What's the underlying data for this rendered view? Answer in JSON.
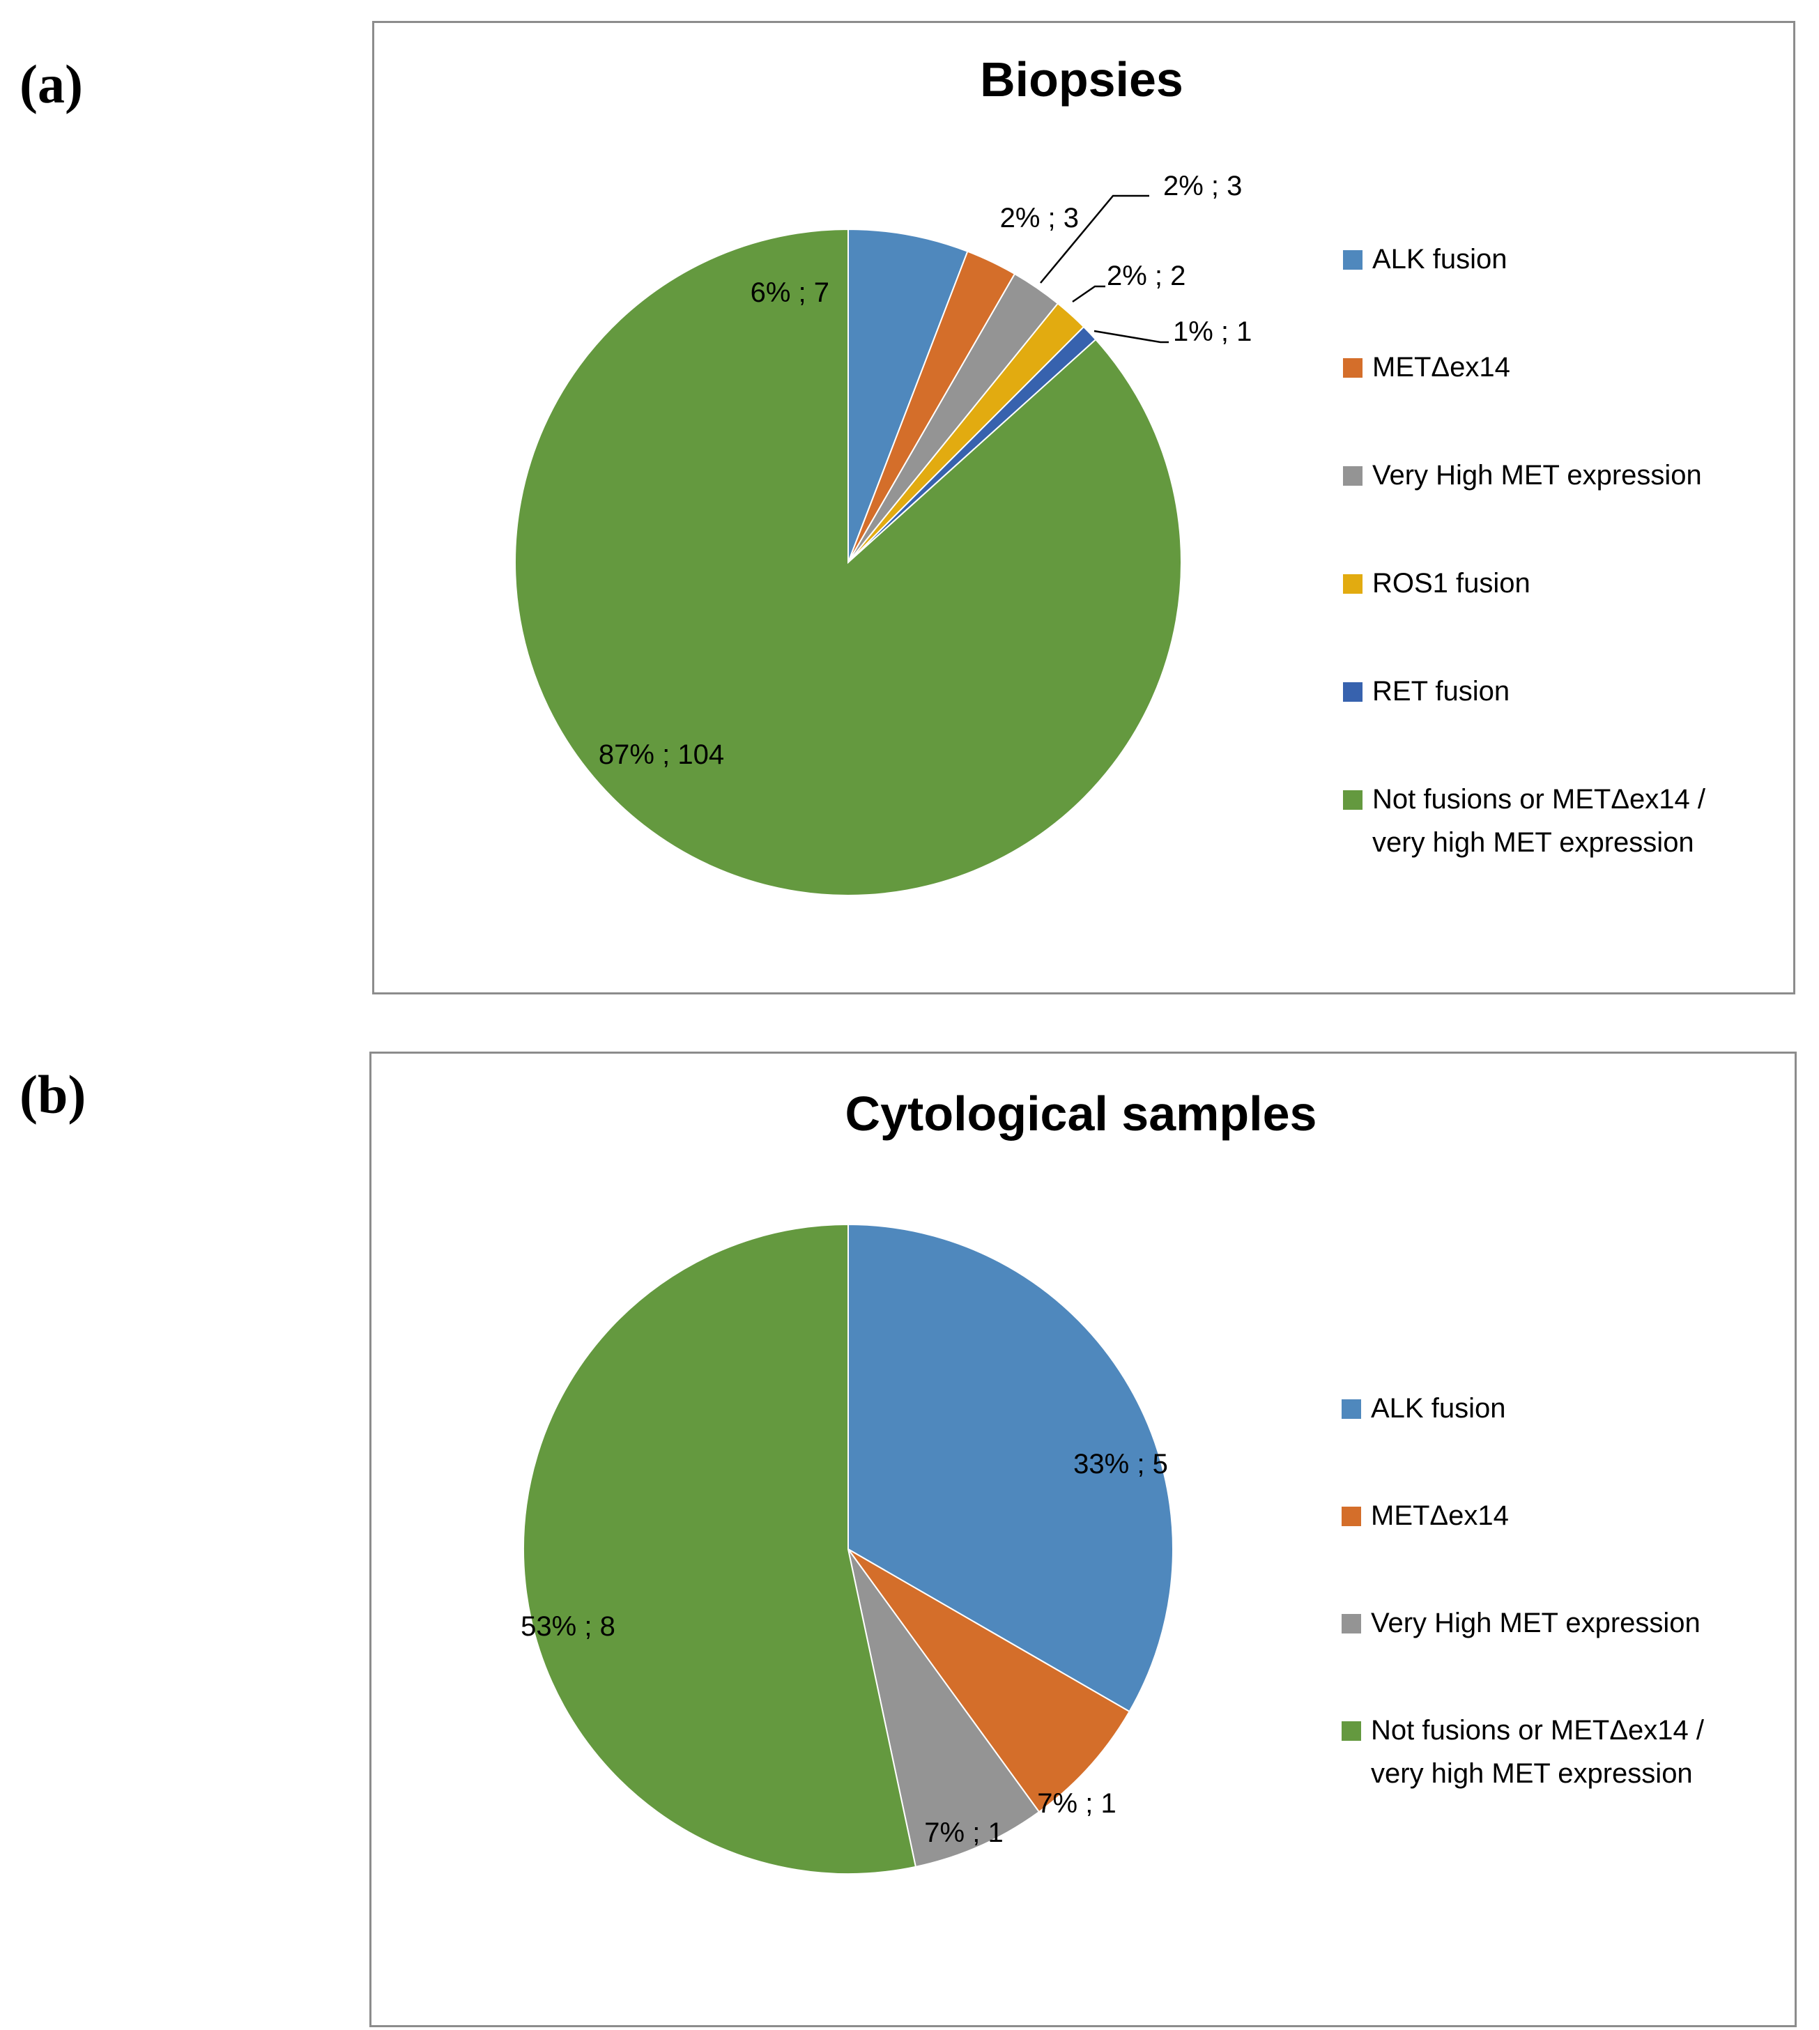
{
  "panel_labels": {
    "a": "(a)",
    "b": "(b)"
  },
  "colors": {
    "ALK fusion": "#4f88bd",
    "METΔex14": "#d46e2a",
    "Very High MET expression": "#949494",
    "ROS1 fusion": "#e2ab10",
    "RET fusion": "#3762ae",
    "Not fusions or METΔex14 / very high MET expression": "#64993f"
  },
  "chart_data": [
    {
      "type": "pie",
      "title": "Biopsies",
      "categories": [
        "ALK fusion",
        "METΔex14",
        "Very High MET expression",
        "ROS1 fusion",
        "RET fusion",
        "Not fusions or METΔex14 / very high MET expression"
      ],
      "values": [
        7,
        3,
        3,
        2,
        1,
        104
      ],
      "data_labels": [
        "6% ; 7",
        "2% ; 3",
        "2% ; 3",
        "2% ; 2",
        "1% ; 1",
        "87% ; 104"
      ],
      "legend": {
        "position": "right",
        "items": [
          {
            "lines": [
              "ALK fusion"
            ]
          },
          {
            "lines": [
              "METΔex14"
            ]
          },
          {
            "lines": [
              "Very High  MET expression"
            ]
          },
          {
            "lines": [
              "ROS1 fusion"
            ]
          },
          {
            "lines": [
              "RET fusion"
            ]
          },
          {
            "lines": [
              "Not fusions  or METΔex14   /",
              "very high MET expression"
            ]
          }
        ]
      }
    },
    {
      "type": "pie",
      "title": "Cytological samples",
      "categories": [
        "ALK fusion",
        "METΔex14",
        "Very High MET expression",
        "Not fusions or METΔex14 / very high MET expression"
      ],
      "values": [
        5,
        1,
        1,
        8
      ],
      "data_labels": [
        "33% ; 5",
        "7% ; 1",
        "7% ; 1",
        "53% ; 8"
      ],
      "legend": {
        "position": "right",
        "items": [
          {
            "lines": [
              "ALK fusion"
            ]
          },
          {
            "lines": [
              "METΔex14"
            ]
          },
          {
            "lines": [
              "Very High  MET expression"
            ]
          },
          {
            "lines": [
              "Not fusions  or METΔex14   /",
              "very high MET expression"
            ]
          }
        ]
      }
    }
  ]
}
